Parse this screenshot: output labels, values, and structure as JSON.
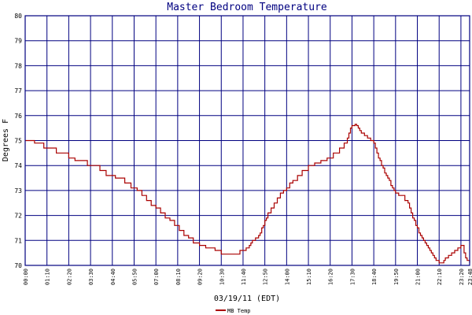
{
  "chart_data": {
    "type": "line",
    "title": "Master Bedroom Temperature",
    "ylabel": "Degrees F",
    "xlabel": "03/19/11 (EDT)",
    "ylim": [
      70,
      80
    ],
    "yticks": [
      "70",
      "71",
      "72",
      "73",
      "74",
      "75",
      "76",
      "77",
      "78",
      "79",
      "80"
    ],
    "xticks": [
      "00:00",
      "01:10",
      "02:20",
      "03:30",
      "04:40",
      "05:50",
      "07:00",
      "08:10",
      "09:20",
      "10:30",
      "11:40",
      "12:50",
      "14:00",
      "15:10",
      "16:20",
      "17:30",
      "18:40",
      "19:50",
      "21:00",
      "22:10",
      "23:20",
      "23:48"
    ],
    "xlim": [
      0,
      1428
    ],
    "grid": true,
    "colors": {
      "series": "#aa0000",
      "grid": "#000080",
      "axis": "#000080",
      "title": "#000080"
    },
    "legend": {
      "placement": "bottom-left"
    },
    "series": [
      {
        "name": "MB Temp",
        "step": true,
        "x": [
          0,
          30,
          60,
          100,
          140,
          160,
          200,
          240,
          260,
          290,
          320,
          340,
          360,
          375,
          390,
          405,
          420,
          435,
          450,
          465,
          480,
          495,
          510,
          525,
          540,
          560,
          580,
          610,
          630,
          650,
          670,
          690,
          700,
          710,
          720,
          725,
          730,
          740,
          750,
          755,
          760,
          765,
          770,
          775,
          780,
          790,
          800,
          810,
          820,
          830,
          840,
          850,
          860,
          875,
          890,
          910,
          930,
          950,
          970,
          990,
          1010,
          1025,
          1035,
          1040,
          1045,
          1050,
          1055,
          1060,
          1065,
          1070,
          1075,
          1080,
          1090,
          1100,
          1110,
          1120,
          1125,
          1130,
          1135,
          1140,
          1145,
          1150,
          1155,
          1160,
          1165,
          1170,
          1175,
          1180,
          1185,
          1190,
          1200,
          1210,
          1220,
          1230,
          1235,
          1240,
          1245,
          1250,
          1255,
          1260,
          1265,
          1270,
          1275,
          1280,
          1285,
          1290,
          1295,
          1300,
          1305,
          1310,
          1315,
          1320,
          1325,
          1330,
          1335,
          1340,
          1345,
          1350,
          1360,
          1370,
          1380,
          1390,
          1400,
          1410,
          1415,
          1420,
          1428
        ],
        "y": [
          75.0,
          74.9,
          74.7,
          74.5,
          74.3,
          74.2,
          74.0,
          73.8,
          73.6,
          73.5,
          73.3,
          73.1,
          73.0,
          72.8,
          72.6,
          72.4,
          72.3,
          72.1,
          71.9,
          71.8,
          71.6,
          71.4,
          71.2,
          71.1,
          70.9,
          70.8,
          70.7,
          70.6,
          70.45,
          70.45,
          70.45,
          70.6,
          70.6,
          70.7,
          70.8,
          70.9,
          71.0,
          71.1,
          71.2,
          71.3,
          71.5,
          71.6,
          71.8,
          71.9,
          72.1,
          72.3,
          72.5,
          72.7,
          72.9,
          73.0,
          73.1,
          73.3,
          73.4,
          73.6,
          73.8,
          74.0,
          74.1,
          74.2,
          74.3,
          74.5,
          74.7,
          74.9,
          75.1,
          75.3,
          75.5,
          75.6,
          75.6,
          75.65,
          75.6,
          75.5,
          75.4,
          75.3,
          75.2,
          75.1,
          75.0,
          74.9,
          74.7,
          74.5,
          74.3,
          74.2,
          74.0,
          73.9,
          73.7,
          73.6,
          73.5,
          73.4,
          73.2,
          73.1,
          73.0,
          72.9,
          72.8,
          72.8,
          72.6,
          72.5,
          72.3,
          72.1,
          71.9,
          71.8,
          71.6,
          71.5,
          71.3,
          71.2,
          71.1,
          71.0,
          70.9,
          70.8,
          70.7,
          70.6,
          70.5,
          70.4,
          70.3,
          70.2,
          70.2,
          70.1,
          70.1,
          70.1,
          70.2,
          70.3,
          70.4,
          70.5,
          70.6,
          70.7,
          70.8,
          70.5,
          70.3,
          70.2,
          70.1
        ]
      }
    ]
  }
}
